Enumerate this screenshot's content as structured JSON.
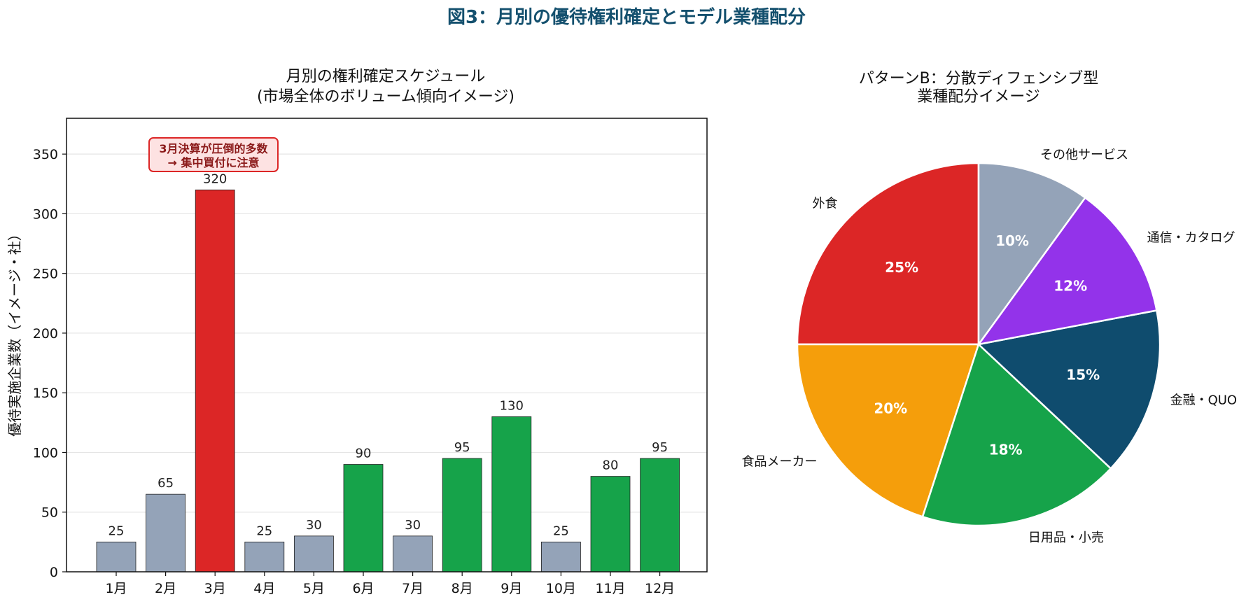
{
  "figure": {
    "suptitle": "図3：月別の優待権利確定とモデル業種配分"
  },
  "chart_data": [
    {
      "type": "bar",
      "title_line1": "月別の権利確定スケジュール",
      "title_line2": "(市場全体のボリューム傾向イメージ)",
      "ylabel": "優待実施企業数（イメージ・社）",
      "categories": [
        "1月",
        "2月",
        "3月",
        "4月",
        "5月",
        "6月",
        "7月",
        "8月",
        "9月",
        "10月",
        "11月",
        "12月"
      ],
      "values": [
        25,
        65,
        320,
        25,
        30,
        90,
        30,
        95,
        130,
        25,
        80,
        95
      ],
      "bar_groups": [
        "low",
        "low",
        "peak",
        "low",
        "low",
        "high",
        "low",
        "high",
        "high",
        "low",
        "high",
        "high"
      ],
      "colors": {
        "low": "#94a3b8",
        "peak": "#dc2626",
        "high": "#16a34a"
      },
      "ylim": [
        0,
        380
      ],
      "yticks": [
        0,
        50,
        100,
        150,
        200,
        250,
        300,
        350
      ],
      "grid": "horizontal",
      "annotation": {
        "line1": "3月決算が圧倒的多数",
        "line2": "→ 集中買付に注意",
        "target_category": "3月",
        "target_value": 340
      }
    },
    {
      "type": "pie",
      "title_line1": "パターンB：分散ディフェンシブ型",
      "title_line2": "業種配分イメージ",
      "slices": [
        {
          "label": "外食",
          "value": 25,
          "pct_label": "25%",
          "color": "#dc2626"
        },
        {
          "label": "食品メーカー",
          "value": 20,
          "pct_label": "20%",
          "color": "#f59e0b"
        },
        {
          "label": "日用品・小売",
          "value": 18,
          "pct_label": "18%",
          "color": "#16a34a"
        },
        {
          "label": "金融・QUO",
          "value": 15,
          "pct_label": "15%",
          "color": "#0f4c6e"
        },
        {
          "label": "通信・カタログ",
          "value": 12,
          "pct_label": "12%",
          "color": "#9333ea"
        },
        {
          "label": "その他サービス",
          "value": 10,
          "pct_label": "10%",
          "color": "#94a3b8"
        }
      ],
      "start": "12 o'clock",
      "direction": "counterclockwise"
    }
  ]
}
